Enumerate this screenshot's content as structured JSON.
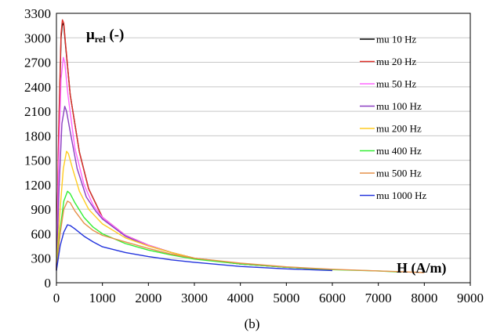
{
  "chart_data": {
    "type": "line",
    "title": "",
    "xlabel": "",
    "ylabel": "",
    "xlim": [
      0,
      9000
    ],
    "ylim": [
      0,
      3300
    ],
    "xticks": [
      0,
      1000,
      2000,
      3000,
      4000,
      5000,
      6000,
      7000,
      8000,
      9000
    ],
    "yticks": [
      0,
      300,
      600,
      900,
      1200,
      1500,
      1800,
      2100,
      2400,
      2700,
      3000,
      3300
    ],
    "grid": "horizontal",
    "legend_position": "top-right",
    "annotations": {
      "ylabel_main": "μ",
      "ylabel_sub": "rel",
      "ylabel_unit": " (-)",
      "xlabel_text": "H (A/m)"
    },
    "series": [
      {
        "name": "mu 10 Hz",
        "color": "#000000",
        "x": [
          0,
          50,
          100,
          130,
          160,
          200,
          300,
          500,
          700,
          1000,
          1500,
          2000,
          2500,
          3000,
          4000,
          5000,
          6000
        ],
        "y": [
          150,
          1800,
          3000,
          3180,
          3150,
          2900,
          2300,
          1600,
          1150,
          800,
          580,
          460,
          370,
          300,
          230,
          190,
          160
        ]
      },
      {
        "name": "mu 20 Hz",
        "color": "#e0302a",
        "x": [
          0,
          50,
          100,
          130,
          160,
          200,
          300,
          500,
          700,
          1000,
          1500,
          2000,
          2500,
          3000,
          4000,
          5000,
          6000
        ],
        "y": [
          160,
          1900,
          3050,
          3220,
          3180,
          2920,
          2300,
          1600,
          1150,
          800,
          580,
          460,
          370,
          300,
          230,
          190,
          160
        ]
      },
      {
        "name": "mu 50 Hz",
        "color": "#ff66ff",
        "x": [
          0,
          50,
          100,
          150,
          180,
          250,
          400,
          600,
          800,
          1000,
          1500,
          2000,
          2500,
          3000,
          4000,
          5000,
          6000
        ],
        "y": [
          170,
          1500,
          2500,
          2760,
          2700,
          2300,
          1650,
          1200,
          950,
          800,
          580,
          460,
          370,
          300,
          230,
          190,
          160
        ]
      },
      {
        "name": "mu 100 Hz",
        "color": "#8a3fc1",
        "x": [
          0,
          60,
          120,
          180,
          220,
          300,
          450,
          650,
          850,
          1000,
          1500,
          2000,
          2500,
          3000,
          4000,
          5000,
          6000
        ],
        "y": [
          180,
          1200,
          1950,
          2160,
          2100,
          1850,
          1400,
          1050,
          880,
          780,
          570,
          450,
          370,
          300,
          230,
          190,
          160
        ]
      },
      {
        "name": "mu 200 Hz",
        "color": "#ffcc22",
        "x": [
          0,
          80,
          150,
          220,
          260,
          350,
          500,
          700,
          900,
          1000,
          1500,
          2000,
          2500,
          3000,
          4000,
          5000,
          6000
        ],
        "y": [
          180,
          900,
          1400,
          1610,
          1580,
          1400,
          1120,
          900,
          780,
          720,
          550,
          450,
          370,
          300,
          235,
          190,
          160
        ]
      },
      {
        "name": "mu 400 Hz",
        "color": "#33ee33",
        "x": [
          0,
          80,
          160,
          240,
          300,
          400,
          600,
          800,
          1000,
          1500,
          2000,
          2500,
          3000,
          4000,
          5000,
          6000,
          7000,
          7500
        ],
        "y": [
          170,
          650,
          1000,
          1120,
          1090,
          980,
          800,
          680,
          600,
          480,
          400,
          340,
          290,
          230,
          190,
          160,
          145,
          130
        ]
      },
      {
        "name": "mu 500 Hz",
        "color": "#e6904a",
        "x": [
          0,
          80,
          160,
          240,
          300,
          400,
          600,
          800,
          1000,
          1500,
          2000,
          2500,
          3000,
          4000,
          5000,
          6000,
          7000,
          8000
        ],
        "y": [
          160,
          600,
          900,
          1000,
          980,
          880,
          730,
          640,
          580,
          500,
          420,
          350,
          300,
          240,
          195,
          165,
          145,
          125
        ]
      },
      {
        "name": "mu 1000 Hz",
        "color": "#2233dd",
        "x": [
          0,
          80,
          160,
          240,
          300,
          400,
          600,
          800,
          1000,
          1500,
          2000,
          2500,
          3000,
          4000,
          5000,
          6000
        ],
        "y": [
          150,
          450,
          620,
          710,
          700,
          660,
          570,
          500,
          440,
          370,
          320,
          280,
          250,
          200,
          170,
          150
        ]
      }
    ]
  },
  "caption": "(b)"
}
